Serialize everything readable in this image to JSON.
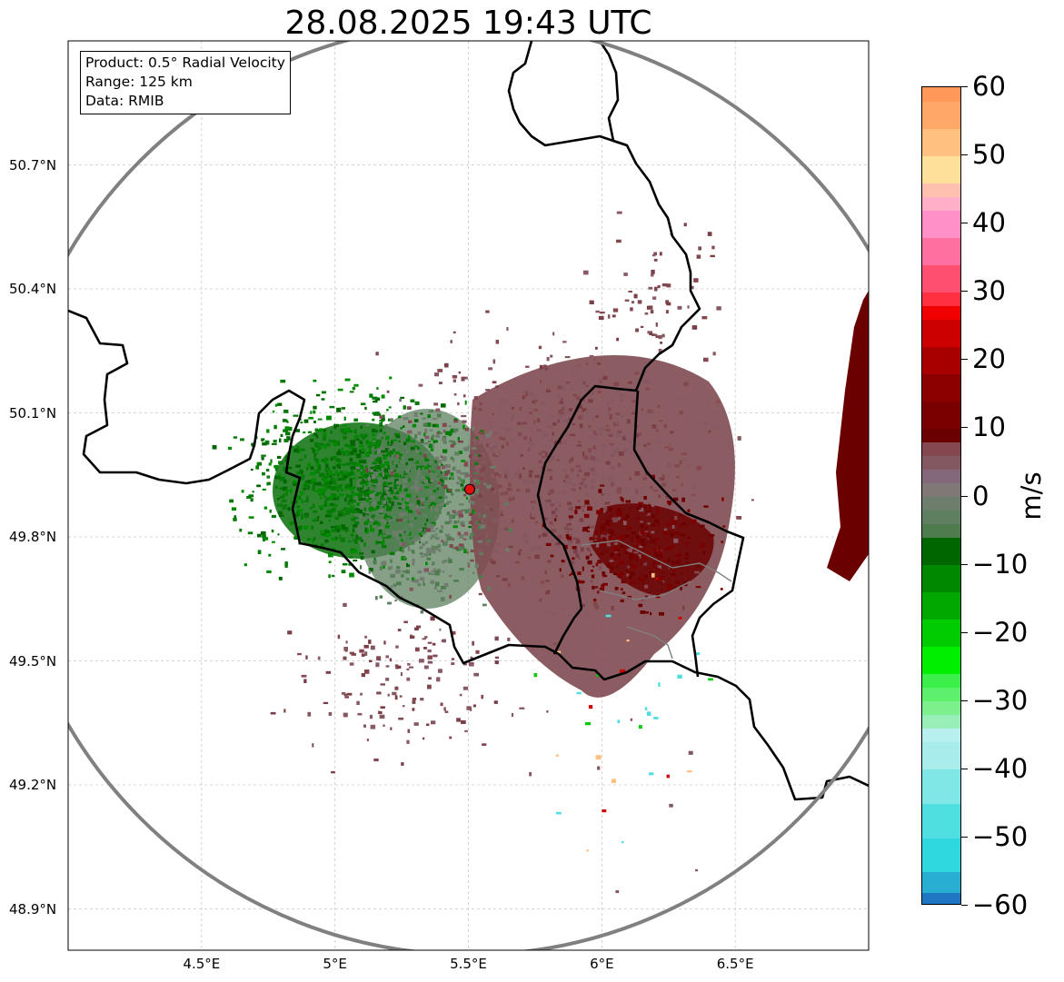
{
  "title": "28.08.2025 19:43 UTC",
  "info_box": {
    "product": "Product: 0.5° Radial Velocity",
    "range": "Range: 125 km",
    "data": "Data: RMIB"
  },
  "map": {
    "lon_range": [
      4.0,
      7.0
    ],
    "lat_range": [
      48.8,
      51.0
    ],
    "lat_ticks": [
      {
        "value": 50.7,
        "label": "50.7°N"
      },
      {
        "value": 50.4,
        "label": "50.4°N"
      },
      {
        "value": 50.1,
        "label": "50.1°N"
      },
      {
        "value": 49.8,
        "label": "49.8°N"
      },
      {
        "value": 49.5,
        "label": "49.5°N"
      },
      {
        "value": 49.2,
        "label": "49.2°N"
      },
      {
        "value": 48.9,
        "label": "48.9°N"
      }
    ],
    "lon_ticks": [
      {
        "value": 4.5,
        "label": "4.5°E"
      },
      {
        "value": 5.0,
        "label": "5°E"
      },
      {
        "value": 5.5,
        "label": "5.5°E"
      },
      {
        "value": 6.0,
        "label": "6°E"
      },
      {
        "value": 6.5,
        "label": "6.5°E"
      }
    ],
    "radar_site": {
      "lon": 5.505,
      "lat": 49.915
    },
    "range_km": 125,
    "range_ring_color": "#808080",
    "site_marker_color": "#e01010",
    "border_color": "#000000",
    "secondary_border_color": "#808080"
  },
  "colorbar": {
    "unit": "m/s",
    "min": -60,
    "max": 60,
    "ticks": [
      {
        "value": 60,
        "label": "60"
      },
      {
        "value": 50,
        "label": "50"
      },
      {
        "value": 40,
        "label": "40"
      },
      {
        "value": 30,
        "label": "30"
      },
      {
        "value": 20,
        "label": "20"
      },
      {
        "value": 10,
        "label": "10"
      },
      {
        "value": 0,
        "label": "0"
      },
      {
        "value": -10,
        "label": "−10"
      },
      {
        "value": -20,
        "label": "−20"
      },
      {
        "value": -30,
        "label": "−30"
      },
      {
        "value": -40,
        "label": "−40"
      },
      {
        "value": -50,
        "label": "−50"
      },
      {
        "value": -60,
        "label": "−60"
      }
    ],
    "segments": [
      {
        "from": -60,
        "to": -58,
        "color": "#1f77c4"
      },
      {
        "from": -58,
        "to": -55,
        "color": "#28aed0"
      },
      {
        "from": -55,
        "to": -50,
        "color": "#2ed8dc"
      },
      {
        "from": -50,
        "to": -45,
        "color": "#50dfe0"
      },
      {
        "from": -45,
        "to": -40,
        "color": "#80e6e6"
      },
      {
        "from": -40,
        "to": -36,
        "color": "#a8ecec"
      },
      {
        "from": -36,
        "to": -34,
        "color": "#b8efef"
      },
      {
        "from": -34,
        "to": -32,
        "color": "#98f0b8"
      },
      {
        "from": -32,
        "to": -30,
        "color": "#7cf08c"
      },
      {
        "from": -30,
        "to": -28,
        "color": "#5cf06c"
      },
      {
        "from": -28,
        "to": -26,
        "color": "#3cf04c"
      },
      {
        "from": -26,
        "to": -22,
        "color": "#00ee00"
      },
      {
        "from": -22,
        "to": -18,
        "color": "#00cc00"
      },
      {
        "from": -18,
        "to": -14,
        "color": "#00a800"
      },
      {
        "from": -14,
        "to": -10,
        "color": "#008800"
      },
      {
        "from": -10,
        "to": -6,
        "color": "#006600"
      },
      {
        "from": -6,
        "to": -4,
        "color": "#4e7c4e"
      },
      {
        "from": -4,
        "to": -2,
        "color": "#5e8060"
      },
      {
        "from": -2,
        "to": 0,
        "color": "#6e7e6c"
      },
      {
        "from": 0,
        "to": 2,
        "color": "#807876"
      },
      {
        "from": 2,
        "to": 4,
        "color": "#826878"
      },
      {
        "from": 4,
        "to": 6,
        "color": "#845860"
      },
      {
        "from": 6,
        "to": 8,
        "color": "#864850"
      },
      {
        "from": 8,
        "to": 10,
        "color": "#6a0000"
      },
      {
        "from": 10,
        "to": 14,
        "color": "#7a0000"
      },
      {
        "from": 14,
        "to": 18,
        "color": "#8c0000"
      },
      {
        "from": 18,
        "to": 22,
        "color": "#a80000"
      },
      {
        "from": 22,
        "to": 26,
        "color": "#cc0000"
      },
      {
        "from": 26,
        "to": 28,
        "color": "#f00000"
      },
      {
        "from": 28,
        "to": 30,
        "color": "#ff3040"
      },
      {
        "from": 30,
        "to": 34,
        "color": "#ff5070"
      },
      {
        "from": 34,
        "to": 38,
        "color": "#ff70a0"
      },
      {
        "from": 38,
        "to": 42,
        "color": "#ff90c8"
      },
      {
        "from": 42,
        "to": 44,
        "color": "#ffb0c8"
      },
      {
        "from": 44,
        "to": 46,
        "color": "#ffc0b0"
      },
      {
        "from": 46,
        "to": 50,
        "color": "#ffe09a"
      },
      {
        "from": 50,
        "to": 54,
        "color": "#ffc080"
      },
      {
        "from": 54,
        "to": 58,
        "color": "#ffa868"
      },
      {
        "from": 58,
        "to": 60,
        "color": "#ff9858"
      }
    ]
  }
}
